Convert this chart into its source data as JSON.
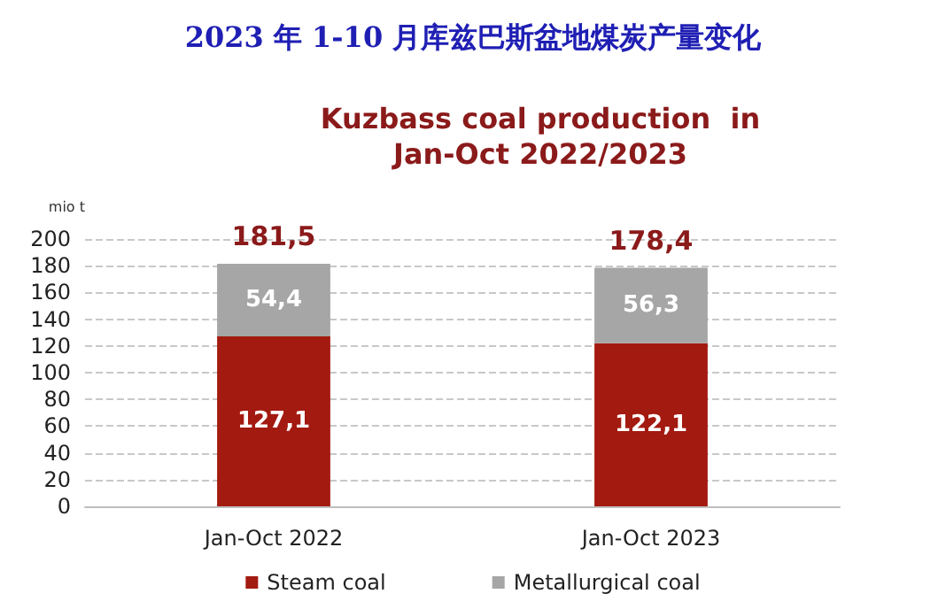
{
  "chart_data": {
    "type": "bar",
    "title": "2023 年 1-10 月库兹巴斯盆地煤炭产量变化",
    "subtitle": "Kuzbass coal production  in\nJan-Oct 2022/2023",
    "ylabel": "mio t",
    "categories": [
      "Jan-Oct 2022",
      "Jan-Oct 2023"
    ],
    "series": [
      {
        "name": "Steam coal",
        "color": "#a31a10",
        "values": [
          127.1,
          122.1
        ],
        "value_labels": [
          "127,1",
          "122,1"
        ]
      },
      {
        "name": "Metallurgical coal",
        "color": "#a6a6a6",
        "values": [
          54.4,
          56.3
        ],
        "value_labels": [
          "54,4",
          "56,3"
        ]
      }
    ],
    "stacked": true,
    "totals": [
      "181,5",
      "178,4"
    ],
    "ylim": [
      0,
      200
    ],
    "yticks": [
      0,
      20,
      40,
      60,
      80,
      100,
      120,
      140,
      160,
      180,
      200
    ],
    "grid": "y",
    "legend": "bottom"
  }
}
